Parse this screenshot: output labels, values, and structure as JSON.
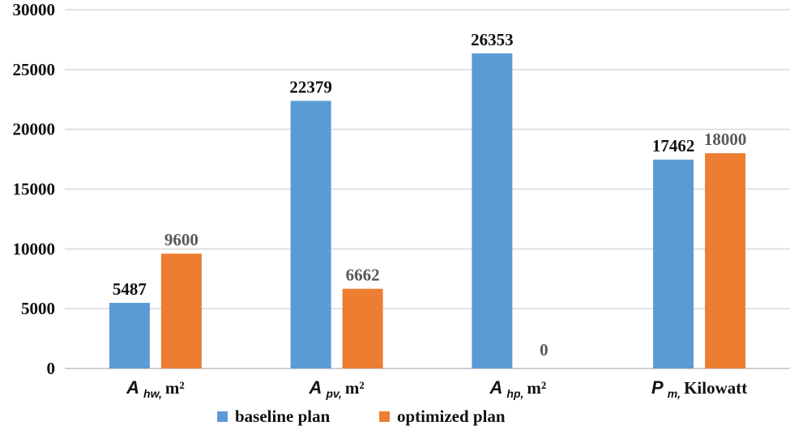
{
  "chart_data": {
    "type": "bar",
    "title": "",
    "xlabel": "",
    "ylabel": "",
    "ylim": [
      0,
      30000
    ],
    "yticks": [
      "0",
      "5000",
      "10000",
      "15000",
      "20000",
      "25000",
      "30000"
    ],
    "grid": true,
    "legend_position": "bottom",
    "categories": [
      {
        "main": "A",
        "sub": "hw,",
        "unit": "m²"
      },
      {
        "main": "A",
        "sub": "pv,",
        "unit": "m²"
      },
      {
        "main": "A",
        "sub": "hp,",
        "unit": "m²"
      },
      {
        "main": "P",
        "sub": "m,",
        "unit": "Kilowatt"
      }
    ],
    "series": [
      {
        "name": "baseline plan",
        "color": "#5B9BD5",
        "label_color": "#111111",
        "values": [
          5487,
          22379,
          26353,
          17462
        ]
      },
      {
        "name": "optimized plan",
        "color": "#ED7D31",
        "label_color": "#595959",
        "values": [
          9600,
          6662,
          0,
          18000
        ]
      }
    ]
  }
}
